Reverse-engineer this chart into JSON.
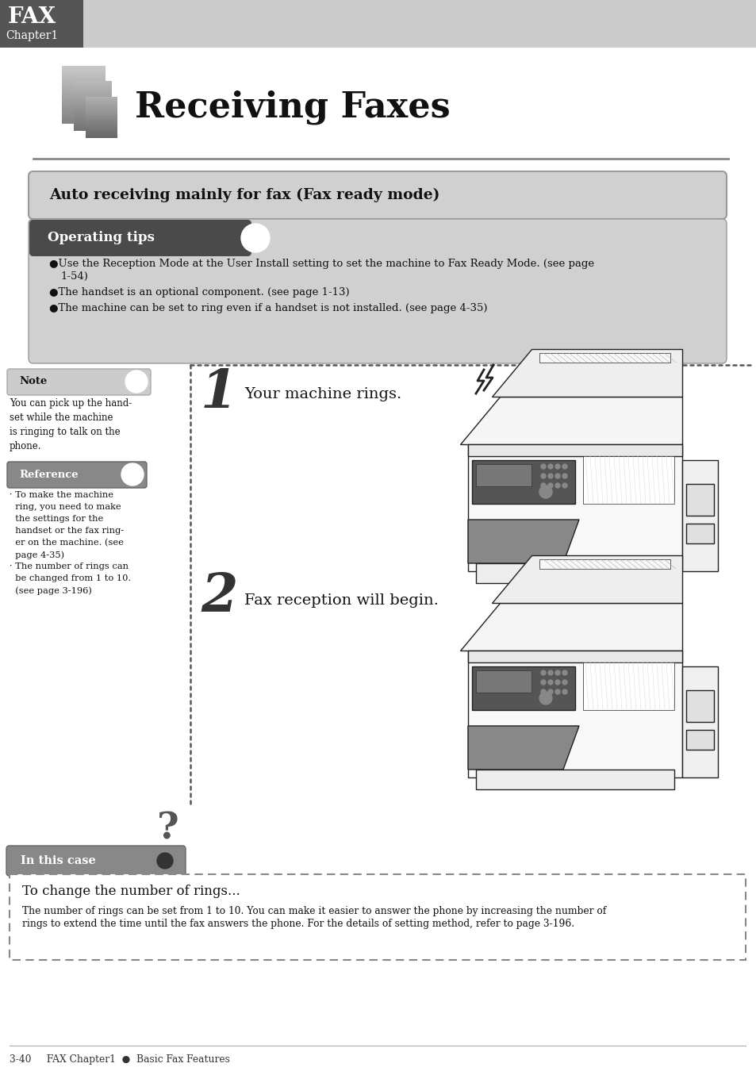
{
  "page_bg": "#ffffff",
  "header_dark_bg": "#555555",
  "header_light_bg": "#cccccc",
  "header_fax": "FAX",
  "header_chapter": "Chapter1",
  "title": "Receiving Faxes",
  "hr_color": "#888888",
  "section_bg": "#d0d0d0",
  "section_border": "#999999",
  "section_title": "Auto receiving mainly for fax (Fax ready mode)",
  "tips_header_bg": "#4a4a4a",
  "tips_body_bg": "#d0d0d0",
  "tips_header_text": "Operating tips",
  "bullet1a": "Use the Reception Mode at the User Install setting to set the machine to Fax Ready Mode. (see page",
  "bullet1b": "1-54)",
  "bullet2": "The handset is an optional component. (see page 1-13)",
  "bullet3": "The machine can be set to ring even if a handset is not installed. (see page 4-35)",
  "note_label": "Note",
  "note_body": "You can pick up the hand-\nset while the machine\nis ringing to talk on the\nphone.",
  "ref_label": "Reference",
  "ref_body1": "· To make the machine",
  "ref_body2": "  ring, you need to make",
  "ref_body3": "  the settings for the",
  "ref_body4": "  handset or the fax ring-",
  "ref_body5": "  er on the machine. (see",
  "ref_body6": "  page 4-35)",
  "ref_body7": "· The number of rings can",
  "ref_body8": "  be changed from 1 to 10.",
  "ref_body9": "  (see page 3-196)",
  "step1_num": "1",
  "step1_text": "Your machine rings.",
  "step2_num": "2",
  "step2_text": "Fax reception will begin.",
  "incase_label": "In this case",
  "incase_title": "To change the number of rings...",
  "incase_body1": "The number of rings can be set from 1 to 10. You can make it easier to answer the phone by increasing the number of",
  "incase_body2": "rings to extend the time until the fax answers the phone. For the details of setting method, refer to page 3-196.",
  "footer": "3-40     FAX Chapter1  ●  Basic Fax Features",
  "dot_color": "#555555",
  "note_bg": "#cccccc",
  "ref_bg": "#888888"
}
